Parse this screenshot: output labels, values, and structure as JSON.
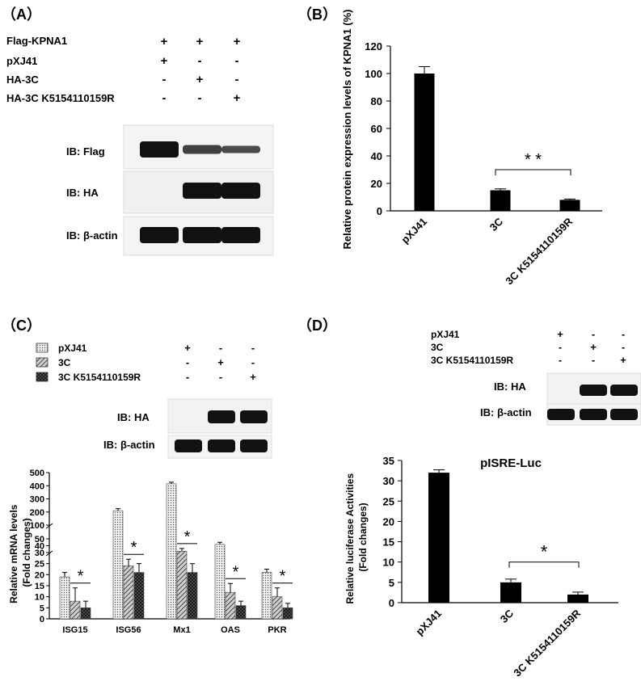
{
  "panels": {
    "A": {
      "panel_label": "（A）",
      "conditions": [
        {
          "name": "Flag-KPNA1",
          "signs": [
            "+",
            "+",
            "+"
          ]
        },
        {
          "name": "pXJ41",
          "signs": [
            "+",
            "-",
            "-"
          ]
        },
        {
          "name": "HA-3C",
          "signs": [
            "-",
            "+",
            "-"
          ]
        },
        {
          "name": "HA-3C K5154110159R",
          "signs": [
            "-",
            "-",
            "+"
          ]
        }
      ],
      "blots": [
        {
          "label": "IB: Flag",
          "bands": [
            1.0,
            0.55,
            0.45
          ]
        },
        {
          "label": "IB: HA",
          "bands": [
            0.0,
            1.0,
            1.0
          ]
        },
        {
          "label": "IB: β-actin",
          "bands": [
            1.0,
            1.0,
            1.0
          ]
        }
      ]
    },
    "B": {
      "panel_label": "（B）",
      "significance": "* *"
    },
    "C": {
      "panel_label": "（C）",
      "legend": [
        {
          "name": "pXJ41",
          "pattern": "dots",
          "signs": [
            "+",
            "-",
            "-"
          ]
        },
        {
          "name": "3C",
          "pattern": "hatch",
          "signs": [
            "-",
            "+",
            "-"
          ]
        },
        {
          "name": "3C K5154110159R",
          "pattern": "cross",
          "signs": [
            "-",
            "-",
            "+"
          ]
        }
      ],
      "blots": [
        {
          "label": "IB: HA",
          "bands": [
            0.0,
            1.0,
            1.0
          ]
        },
        {
          "label": "IB: β-actin",
          "bands": [
            1.0,
            1.0,
            1.0
          ]
        }
      ],
      "significance": "*"
    },
    "D": {
      "panel_label": "（D）",
      "conditions": [
        {
          "name": "pXJ41",
          "signs": [
            "+",
            "-",
            "-"
          ]
        },
        {
          "name": "3C",
          "signs": [
            "-",
            "+",
            "-"
          ]
        },
        {
          "name": "3C K5154110159R",
          "signs": [
            "-",
            "-",
            "+"
          ]
        }
      ],
      "blots": [
        {
          "label": "IB: HA",
          "bands": [
            0.0,
            1.0,
            1.0
          ]
        },
        {
          "label": "IB: β-actin",
          "bands": [
            1.0,
            1.0,
            1.0
          ]
        }
      ],
      "significance": "*"
    }
  },
  "chart_data": [
    {
      "panel": "B",
      "type": "bar",
      "title": "",
      "xlabel": "",
      "ylabel": "Relative protein expression levels of KPNA1 (%)",
      "categories": [
        "pXJ41",
        "3C",
        "3C K5154110159R"
      ],
      "values": [
        100,
        15,
        8
      ],
      "errors": [
        5,
        1,
        0.6
      ],
      "ylim": [
        0,
        120
      ],
      "yticks": [
        0,
        20,
        40,
        60,
        80,
        100,
        120
      ],
      "color": "#000000"
    },
    {
      "panel": "C",
      "type": "bar",
      "title": "",
      "xlabel": "",
      "ylabel": "Relative mRNA levels\n(Fold changes)",
      "categories": [
        "ISG15",
        "ISG56",
        "Mx1",
        "OAS",
        "PKR"
      ],
      "series": [
        {
          "name": "pXJ41",
          "values": [
            19,
            210,
            415,
            42,
            21
          ],
          "errors": [
            2,
            15,
            12,
            3,
            1.5
          ]
        },
        {
          "name": "3C",
          "values": [
            8,
            24,
            32,
            12,
            10
          ],
          "errors": [
            6,
            3,
            4,
            4,
            4
          ]
        },
        {
          "name": "3C K5154110159R",
          "values": [
            5,
            21,
            21,
            6,
            5
          ],
          "errors": [
            3,
            4,
            4,
            2,
            2
          ]
        }
      ],
      "yticks": [
        0,
        5,
        10,
        15,
        20,
        25,
        30,
        40,
        50,
        100,
        200,
        300,
        400,
        500
      ],
      "ylim": [
        0,
        500
      ],
      "axis_break": "broken y-axis with non-linear segments"
    },
    {
      "panel": "D",
      "type": "bar",
      "title": "pISRE-Luc",
      "xlabel": "",
      "ylabel": "Relative luciferase Activities\n(Fold changes)",
      "categories": [
        "pXJ41",
        "3C",
        "3C K5154110159R"
      ],
      "values": [
        32,
        5,
        2
      ],
      "errors": [
        0.7,
        0.8,
        0.6
      ],
      "ylim": [
        0,
        35
      ],
      "yticks": [
        0,
        5,
        10,
        15,
        20,
        25,
        30,
        35
      ],
      "color": "#000000"
    }
  ]
}
